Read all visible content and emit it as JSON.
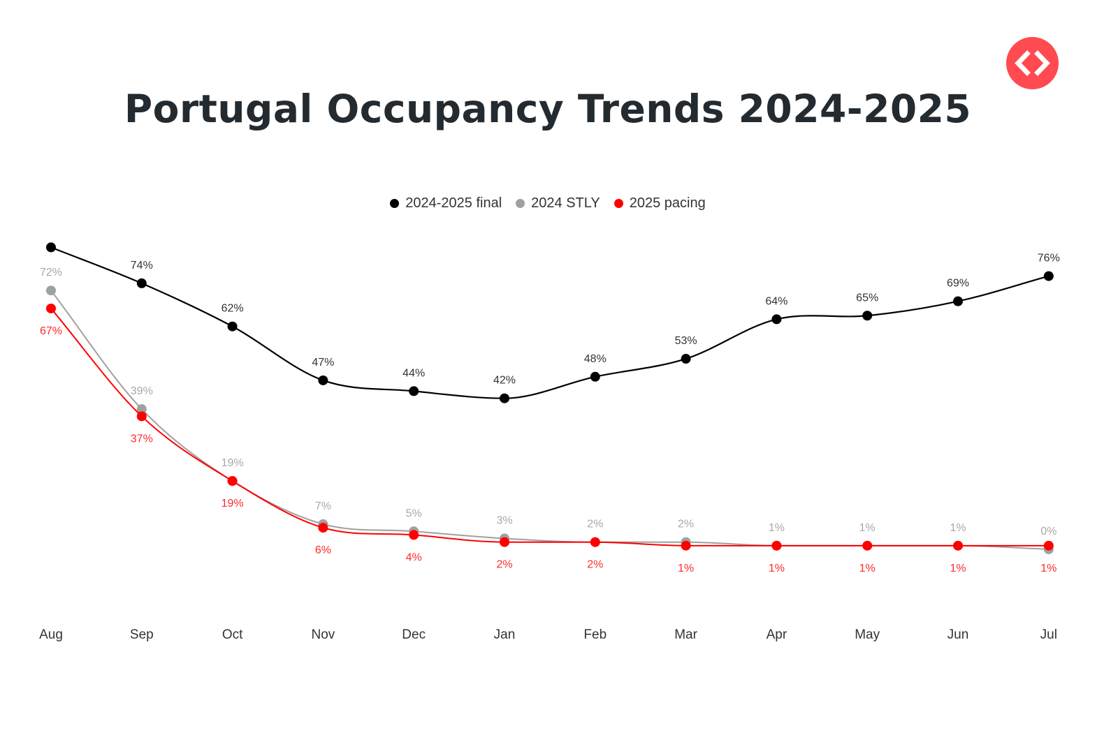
{
  "brand": {
    "logo_icon": "code-brackets-icon",
    "logo_color": "#ff4a4f"
  },
  "chart_data": {
    "type": "line",
    "title": "Portugal Occupancy Trends 2024-2025",
    "xlabel": "",
    "ylabel": "",
    "ylim": [
      0,
      100
    ],
    "grid": false,
    "legend_position": "top-center",
    "categories": [
      "Aug",
      "Sep",
      "Oct",
      "Nov",
      "Dec",
      "Jan",
      "Feb",
      "Mar",
      "Apr",
      "May",
      "Jun",
      "Jul"
    ],
    "series": [
      {
        "name": "2024-2025 final",
        "color": "#000000",
        "label_color": "#333333",
        "label_position": "above",
        "values": [
          84,
          74,
          62,
          47,
          44,
          42,
          48,
          53,
          64,
          65,
          69,
          76
        ],
        "labels": [
          "",
          "74%",
          "62%",
          "47%",
          "44%",
          "42%",
          "48%",
          "53%",
          "64%",
          "65%",
          "69%",
          "76%"
        ]
      },
      {
        "name": "2024 STLY",
        "color": "#a0a0a0",
        "label_color": "#a8a8a8",
        "label_position": "above",
        "values": [
          72,
          39,
          19,
          7,
          5,
          3,
          2,
          2,
          1,
          1,
          1,
          0
        ],
        "labels": [
          "72%",
          "39%",
          "19%",
          "7%",
          "5%",
          "3%",
          "2%",
          "2%",
          "1%",
          "1%",
          "1%",
          "0%"
        ]
      },
      {
        "name": "2025 pacing",
        "color": "#ff0000",
        "label_color": "#ff2a2a",
        "label_position": "below",
        "values": [
          67,
          37,
          19,
          6,
          4,
          2,
          2,
          1,
          1,
          1,
          1,
          1
        ],
        "labels": [
          "67%",
          "37%",
          "19%",
          "6%",
          "4%",
          "2%",
          "2%",
          "1%",
          "1%",
          "1%",
          "1%",
          "1%"
        ]
      }
    ]
  }
}
